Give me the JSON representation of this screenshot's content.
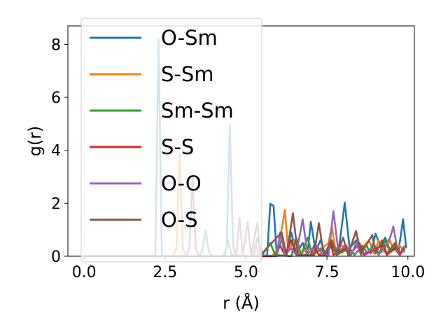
{
  "chart_data": {
    "type": "line",
    "xlabel": "r (Å)",
    "ylabel": "g(r)",
    "xlim": [
      -0.5,
      10.2
    ],
    "ylim": [
      0,
      8.7
    ],
    "xticks": [
      0.0,
      2.5,
      5.0,
      7.5,
      10.0
    ],
    "xtick_labels": [
      "0.0",
      "2.5",
      "5.0",
      "7.5",
      "10.0"
    ],
    "yticks": [
      0,
      2,
      4,
      6,
      8
    ],
    "ytick_labels": [
      "0",
      "2",
      "4",
      "6",
      "8"
    ],
    "grid": false,
    "legend_position": "upper-left",
    "series": [
      {
        "name": "O-Sm",
        "color": "#1f77b4",
        "points": [
          [
            0,
            0
          ],
          [
            2.1,
            0
          ],
          [
            2.2,
            0.05
          ],
          [
            2.3,
            8.2
          ],
          [
            2.4,
            0.05
          ],
          [
            2.5,
            0
          ],
          [
            4.3,
            0
          ],
          [
            4.4,
            0.3
          ],
          [
            4.5,
            4.95
          ],
          [
            4.6,
            0.4
          ],
          [
            4.7,
            0
          ],
          [
            5.65,
            0
          ],
          [
            5.75,
            1.98
          ],
          [
            5.85,
            1.9
          ],
          [
            5.95,
            0.05
          ],
          [
            6.1,
            0.7
          ],
          [
            6.25,
            0.05
          ],
          [
            6.4,
            0.9
          ],
          [
            6.55,
            0.1
          ],
          [
            6.75,
            0.5
          ],
          [
            6.9,
            0.05
          ],
          [
            7.0,
            1.3
          ],
          [
            7.15,
            0.2
          ],
          [
            7.3,
            0.6
          ],
          [
            7.45,
            0.05
          ],
          [
            7.7,
            0.5
          ],
          [
            7.85,
            0.1
          ],
          [
            8.05,
            2.02
          ],
          [
            8.2,
            0.3
          ],
          [
            8.4,
            0.6
          ],
          [
            8.55,
            0.2
          ],
          [
            8.7,
            0.45
          ],
          [
            8.85,
            0.1
          ],
          [
            9.0,
            0.85
          ],
          [
            9.15,
            0.4
          ],
          [
            9.3,
            0.7
          ],
          [
            9.45,
            0.2
          ],
          [
            9.6,
            0.35
          ],
          [
            9.7,
            0.1
          ],
          [
            9.85,
            1.4
          ],
          [
            9.95,
            0.3
          ]
        ]
      },
      {
        "name": "S-Sm",
        "color": "#ff7f0e",
        "points": [
          [
            0,
            0
          ],
          [
            2.75,
            0
          ],
          [
            2.85,
            0.3
          ],
          [
            2.95,
            3.9
          ],
          [
            3.05,
            0.3
          ],
          [
            3.15,
            0
          ],
          [
            5.8,
            0
          ],
          [
            6.0,
            0.3
          ],
          [
            6.2,
            1.75
          ],
          [
            6.3,
            0.2
          ],
          [
            6.5,
            0.6
          ],
          [
            6.65,
            0.1
          ],
          [
            7.0,
            0.3
          ],
          [
            7.1,
            0.05
          ],
          [
            7.55,
            0.5
          ],
          [
            7.65,
            1.15
          ],
          [
            7.75,
            0.3
          ],
          [
            8.0,
            0.4
          ],
          [
            8.15,
            0.1
          ],
          [
            8.4,
            0.95
          ],
          [
            8.5,
            0.2
          ],
          [
            8.8,
            0.6
          ],
          [
            8.95,
            0.1
          ],
          [
            9.1,
            0.6
          ],
          [
            9.2,
            0.15
          ],
          [
            9.45,
            0.6
          ],
          [
            9.55,
            0.2
          ],
          [
            9.75,
            0.4
          ],
          [
            9.9,
            0.15
          ]
        ]
      },
      {
        "name": "Sm-Sm",
        "color": "#2ca02c",
        "points": [
          [
            0,
            0
          ],
          [
            3.55,
            0
          ],
          [
            3.65,
            0.2
          ],
          [
            3.75,
            0.95
          ],
          [
            3.85,
            0.2
          ],
          [
            3.95,
            0
          ],
          [
            4.35,
            0
          ],
          [
            4.45,
            0.6
          ],
          [
            4.55,
            0.05
          ],
          [
            5.25,
            0
          ],
          [
            5.35,
            0.7
          ],
          [
            5.5,
            0.05
          ],
          [
            5.75,
            0.5
          ],
          [
            5.9,
            0.05
          ],
          [
            6.4,
            0
          ],
          [
            6.55,
            0.7
          ],
          [
            6.7,
            0.05
          ],
          [
            6.9,
            0.7
          ],
          [
            7.05,
            0.05
          ],
          [
            7.3,
            0.3
          ],
          [
            7.45,
            0.05
          ],
          [
            7.65,
            0.4
          ],
          [
            7.8,
            0.05
          ],
          [
            8.2,
            0.3
          ],
          [
            8.35,
            0.05
          ],
          [
            8.6,
            0.4
          ],
          [
            8.75,
            0.1
          ],
          [
            8.95,
            0.45
          ],
          [
            9.1,
            0.1
          ],
          [
            9.3,
            0.6
          ],
          [
            9.45,
            0.15
          ],
          [
            9.6,
            0.4
          ],
          [
            9.75,
            0.1
          ],
          [
            9.9,
            0.25
          ]
        ]
      },
      {
        "name": "S-S",
        "color": "#d62728",
        "points": [
          [
            0,
            0
          ],
          [
            5.9,
            0
          ],
          [
            6.05,
            0.4
          ],
          [
            6.2,
            0.05
          ],
          [
            6.4,
            0.6
          ],
          [
            6.55,
            0.05
          ],
          [
            7.0,
            0.05
          ],
          [
            7.1,
            0.4
          ],
          [
            7.25,
            0.05
          ],
          [
            7.5,
            0.05
          ],
          [
            7.6,
            0.6
          ],
          [
            7.7,
            0.05
          ],
          [
            8.1,
            0.3
          ],
          [
            8.2,
            0.05
          ],
          [
            8.5,
            0.5
          ],
          [
            8.65,
            0.05
          ],
          [
            9.2,
            0.4
          ],
          [
            9.35,
            0.05
          ],
          [
            9.6,
            0.3
          ],
          [
            9.75,
            0.05
          ],
          [
            9.9,
            0.3
          ]
        ]
      },
      {
        "name": "O-O",
        "color": "#9467bd",
        "points": [
          [
            0,
            0
          ],
          [
            5.2,
            0
          ],
          [
            5.3,
            0.5
          ],
          [
            5.4,
            0.05
          ],
          [
            5.95,
            0
          ],
          [
            6.05,
            0.9
          ],
          [
            6.2,
            0.05
          ],
          [
            6.4,
            0.3
          ],
          [
            6.55,
            0.05
          ],
          [
            6.75,
            1.4
          ],
          [
            6.9,
            0.1
          ],
          [
            7.2,
            0.4
          ],
          [
            7.35,
            0.05
          ],
          [
            7.55,
            0.05
          ],
          [
            7.7,
            1.7
          ],
          [
            7.85,
            0.2
          ],
          [
            8.1,
            0.4
          ],
          [
            8.25,
            0.05
          ],
          [
            8.4,
            0.5
          ],
          [
            8.55,
            0.05
          ],
          [
            8.95,
            0.3
          ],
          [
            9.1,
            0.05
          ],
          [
            9.45,
            0.7
          ],
          [
            9.55,
            1.12
          ],
          [
            9.7,
            0.1
          ],
          [
            9.9,
            0.2
          ]
        ]
      },
      {
        "name": "O-S",
        "color": "#8c564b",
        "points": [
          [
            0,
            0
          ],
          [
            3.15,
            0
          ],
          [
            3.25,
            0.3
          ],
          [
            3.35,
            3.0
          ],
          [
            3.45,
            0.3
          ],
          [
            3.55,
            0
          ],
          [
            4.7,
            0
          ],
          [
            4.8,
            1.45
          ],
          [
            4.9,
            0.05
          ],
          [
            5.05,
            1.3
          ],
          [
            5.15,
            0.05
          ],
          [
            5.35,
            1.25
          ],
          [
            5.45,
            0.05
          ],
          [
            6.1,
            0.9
          ],
          [
            6.25,
            0.05
          ],
          [
            6.45,
            1.62
          ],
          [
            6.6,
            0.05
          ],
          [
            7.1,
            0.05
          ],
          [
            7.25,
            1.25
          ],
          [
            7.4,
            0.05
          ],
          [
            7.65,
            0.6
          ],
          [
            7.8,
            0.05
          ],
          [
            8.0,
            0.7
          ],
          [
            8.15,
            0.05
          ],
          [
            8.4,
            0.95
          ],
          [
            8.55,
            0.1
          ],
          [
            8.9,
            0.8
          ],
          [
            9.0,
            0.1
          ],
          [
            9.2,
            0.6
          ],
          [
            9.35,
            0.1
          ],
          [
            9.6,
            0.5
          ],
          [
            9.75,
            0.1
          ],
          [
            9.9,
            0.4
          ]
        ]
      }
    ]
  }
}
